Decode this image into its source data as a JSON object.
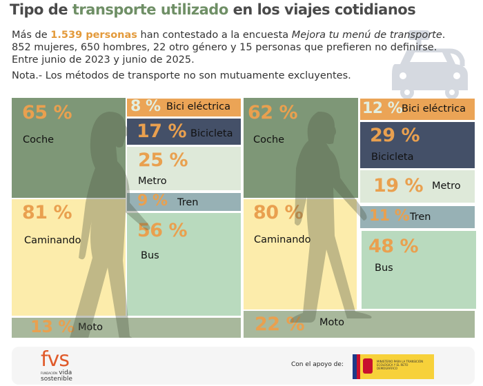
{
  "header": {
    "title_pre": "Tipo de ",
    "title_hl": "transporte utilizado",
    "title_post": " en los viajes cotidianos"
  },
  "intro": {
    "p1": "Más de ",
    "count": "1.539 personas",
    "p2": " han contestado a la encuesta ",
    "survey": "Mejora tu menú de transporte",
    "p3": ". 852 mujeres, 650 hombres, 22 otro género y 15 personas que prefieren no definirse. Entre junio de 2023 y junio de 2025.",
    "note": "Nota.- Los métodos de transporte no son mutuamente excluyentes."
  },
  "colors": {
    "coche": "#7e9777",
    "caminando": "#fcecab",
    "bici_electrica": "#eba456",
    "bicicleta": "#445068",
    "metro": "#dee9d9",
    "tren": "#97b1b5",
    "bus": "#b9dabe",
    "moto": "#a8b89c",
    "value": "#e9a04f"
  },
  "chart_data": [
    {
      "type": "treemap",
      "group_icon": "woman-walking",
      "categories": [
        "Coche",
        "Caminando",
        "Bici eléctrica",
        "Bicicleta",
        "Metro",
        "Tren",
        "Bus",
        "Moto"
      ],
      "values": [
        65,
        81,
        8,
        17,
        25,
        9,
        56,
        13
      ],
      "labels": [
        "65 %",
        "81 %",
        "8 %",
        "17 %",
        "25 %",
        "9 %",
        "56 %",
        "13 %"
      ],
      "unit": "%"
    },
    {
      "type": "treemap",
      "group_icon": "man-walking",
      "categories": [
        "Coche",
        "Caminando",
        "Bici eléctrica",
        "Bicicleta",
        "Metro",
        "Tren",
        "Bus",
        "Moto"
      ],
      "values": [
        62,
        80,
        12,
        29,
        19,
        11,
        48,
        22
      ],
      "labels": [
        "62 %",
        "80 %",
        "12 %",
        "29 %",
        "19 %",
        "11 %",
        "48 %",
        "22 %"
      ],
      "unit": "%"
    }
  ],
  "footer": {
    "logo": "fvs",
    "logo_sub1": "FUNDACIÓN",
    "logo_sub2": "vida",
    "logo_sub3": "sostenible",
    "support": "Con el apoyo de:",
    "ministry": "MINISTERIO PARA LA TRANSICIÓN ECOLÓGICA Y EL RETO DEMOGRÁFICO"
  }
}
